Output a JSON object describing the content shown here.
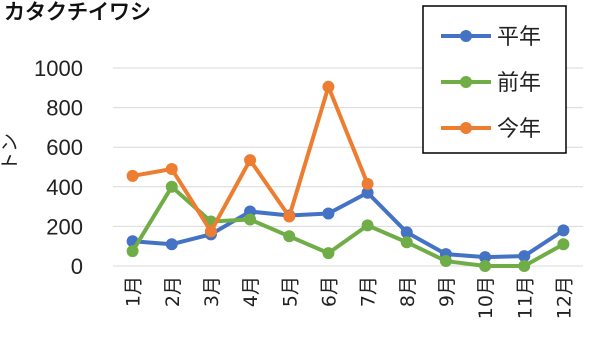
{
  "colors": {
    "平年": "#4472C4",
    "前年": "#70AD47",
    "今年": "#ED7D31",
    "grid": "#D9D9D9"
  },
  "chart_data": {
    "type": "line",
    "title": "カタクチイワシ",
    "ylabel": "トン",
    "xlabel": "",
    "ylim": [
      0,
      1000
    ],
    "yticks": [
      0,
      200,
      400,
      600,
      800,
      1000
    ],
    "grid": true,
    "legend_position": "top-right",
    "categories": [
      "1月",
      "2月",
      "3月",
      "4月",
      "5月",
      "6月",
      "7月",
      "8月",
      "9月",
      "10月",
      "11月",
      "12月"
    ],
    "series": [
      {
        "name": "平年",
        "values": [
          125,
          110,
          160,
          275,
          255,
          265,
          370,
          170,
          60,
          45,
          50,
          180
        ]
      },
      {
        "name": "前年",
        "values": [
          75,
          400,
          225,
          235,
          150,
          65,
          205,
          120,
          25,
          0,
          0,
          110
        ]
      },
      {
        "name": "今年",
        "values": [
          455,
          490,
          175,
          535,
          250,
          905,
          415,
          null,
          null,
          null,
          null,
          null
        ]
      }
    ]
  }
}
